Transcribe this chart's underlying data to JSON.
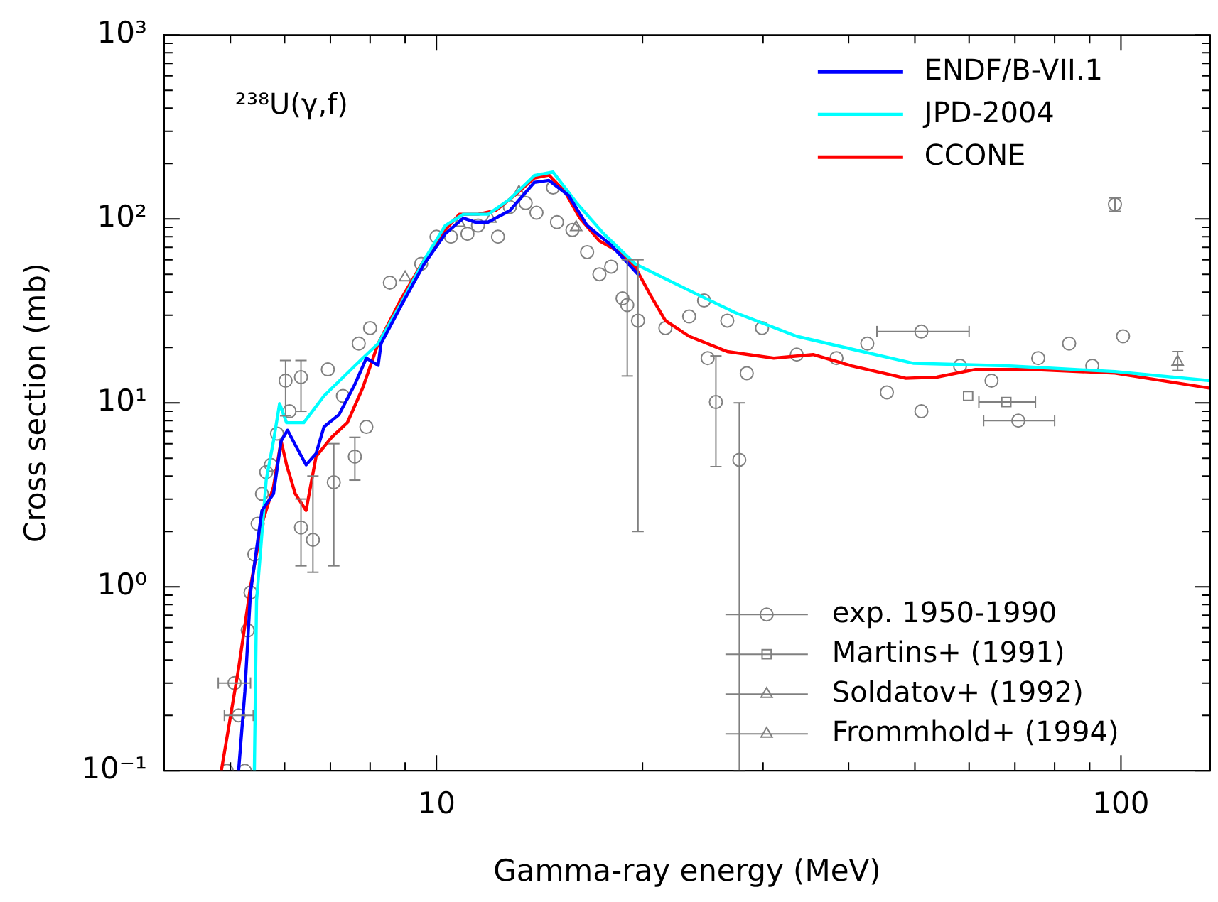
{
  "chart_data": {
    "type": "line",
    "xlabel": "Gamma-ray energy (MeV)",
    "ylabel": "Cross section (mb)",
    "log": "xy",
    "grid": false,
    "legend": "top right",
    "annotations": [
      "²³⁸U(γ,f)"
    ],
    "xlim": [
      4,
      135
    ],
    "ylim": [
      0.1,
      1000
    ],
    "xticks": [
      {
        "value": 4,
        "label": null
      },
      {
        "value": 5,
        "label": null
      },
      {
        "value": 6,
        "label": null
      },
      {
        "value": 7,
        "label": null
      },
      {
        "value": 8,
        "label": null
      },
      {
        "value": 9,
        "label": null
      },
      10,
      {
        "value": 20,
        "label": null
      },
      {
        "value": 30,
        "label": null
      },
      {
        "value": 40,
        "label": null
      },
      {
        "value": 50,
        "label": null
      },
      {
        "value": 60,
        "label": null
      },
      {
        "value": 70,
        "label": null
      },
      {
        "value": 80,
        "label": null
      },
      {
        "value": 90,
        "label": null
      },
      100
    ],
    "yticks": [
      {
        "value": 0.1,
        "label": "10⁻¹"
      },
      {
        "value": 0.2,
        "label": null
      },
      {
        "value": 0.3,
        "label": null
      },
      {
        "value": 0.4,
        "label": null
      },
      {
        "value": 0.5,
        "label": null
      },
      {
        "value": 0.6,
        "label": null
      },
      {
        "value": 0.7,
        "label": null
      },
      {
        "value": 0.8,
        "label": null
      },
      {
        "value": 0.9,
        "label": null
      },
      {
        "value": 1,
        "label": "10⁰"
      },
      {
        "value": 2,
        "label": null
      },
      {
        "value": 3,
        "label": null
      },
      {
        "value": 4,
        "label": null
      },
      {
        "value": 5,
        "label": null
      },
      {
        "value": 6,
        "label": null
      },
      {
        "value": 7,
        "label": null
      },
      {
        "value": 8,
        "label": null
      },
      {
        "value": 9,
        "label": null
      },
      {
        "value": 10,
        "label": "10¹"
      },
      {
        "value": 20,
        "label": null
      },
      {
        "value": 30,
        "label": null
      },
      {
        "value": 40,
        "label": null
      },
      {
        "value": 50,
        "label": null
      },
      {
        "value": 60,
        "label": null
      },
      {
        "value": 70,
        "label": null
      },
      {
        "value": 80,
        "label": null
      },
      {
        "value": 90,
        "label": null
      },
      {
        "value": 100,
        "label": "10²"
      },
      {
        "value": 200,
        "label": null
      },
      {
        "value": 300,
        "label": null
      },
      {
        "value": 400,
        "label": null
      },
      {
        "value": 500,
        "label": null
      },
      {
        "value": 600,
        "label": null
      },
      {
        "value": 700,
        "label": null
      },
      {
        "value": 800,
        "label": null
      },
      {
        "value": 900,
        "label": null
      },
      {
        "value": 1000,
        "label": "10³"
      }
    ],
    "series": [
      {
        "name": "exp. 1950-1990",
        "type": "scatter",
        "marker": "circle",
        "color": "#808080",
        "x": [
          4.94,
          5.07,
          5.14,
          5.25,
          5.3,
          5.35,
          5.42,
          5.48,
          5.56,
          5.64,
          5.73,
          5.85,
          6.02,
          6.1,
          6.34,
          6.34,
          6.6,
          6.94,
          7.08,
          7.3,
          7.6,
          7.7,
          7.9,
          8.0,
          8.55,
          9.5,
          10,
          10.5,
          11.1,
          11.5,
          12.3,
          12.8,
          13.5,
          14.0,
          14.8,
          15.0,
          15.8,
          16.6,
          17.3,
          18.0,
          18.7,
          19.0,
          19.7,
          21.6,
          23.4,
          24.6,
          24.9,
          25.6,
          27.7,
          26.6,
          28.4,
          29.9,
          33.6,
          38.4,
          42.6,
          45.5,
          51.1,
          51.1,
          58.2,
          64.7,
          70.8,
          75.7,
          84,
          90.8,
          100.7,
          98
        ],
        "values": [
          0.1,
          0.3,
          0.2,
          0.1,
          0.58,
          0.93,
          1.5,
          2.2,
          3.2,
          4.2,
          4.6,
          6.8,
          13.2,
          9.0,
          13.8,
          2.1,
          1.8,
          15.2,
          3.7,
          10.9,
          5.1,
          21,
          7.4,
          25.5,
          45,
          57,
          80,
          80,
          83,
          92,
          80,
          116,
          122,
          108,
          148,
          96,
          87,
          66,
          50,
          55,
          37,
          34,
          28,
          25.5,
          29.5,
          36,
          17.5,
          10.1,
          4.9,
          28,
          14.5,
          25.5,
          18.3,
          17.5,
          21,
          11.4,
          9.0,
          24.4,
          15.9,
          13.2,
          8.0,
          17.5,
          21,
          15.9,
          23,
          120
        ],
        "errors": [
          null,
          null,
          null,
          null,
          null,
          null,
          null,
          null,
          null,
          null,
          null,
          null,
          [
            8.5,
            17
          ],
          null,
          [
            9,
            17
          ],
          [
            1.3,
            3
          ],
          [
            1.2,
            4
          ],
          null,
          [
            1.3,
            6
          ],
          null,
          [
            3.8,
            6.5
          ],
          null,
          null,
          null,
          null,
          null,
          null,
          null,
          null,
          null,
          null,
          null,
          null,
          null,
          null,
          null,
          null,
          null,
          null,
          null,
          null,
          [
            14,
            60
          ],
          [
            2,
            60
          ],
          null,
          null,
          null,
          null,
          [
            4.5,
            18
          ],
          [
            0.1,
            10
          ],
          null,
          null,
          null,
          null,
          null,
          null,
          null,
          null,
          null,
          null,
          null,
          null,
          null,
          null,
          null,
          null,
          [
            110,
            130
          ]
        ],
        "xerrors": [
          null,
          [
            4.8,
            5.35
          ],
          [
            4.9,
            5.4
          ],
          null,
          null,
          null,
          null,
          null,
          null,
          null,
          null,
          null,
          null,
          null,
          null,
          null,
          null,
          null,
          null,
          null,
          null,
          null,
          null,
          null,
          null,
          null,
          null,
          null,
          null,
          null,
          null,
          null,
          null,
          null,
          null,
          null,
          null,
          null,
          null,
          null,
          null,
          null,
          null,
          null,
          null,
          null,
          null,
          null,
          null,
          null,
          null,
          null,
          null,
          null,
          null,
          null,
          null,
          [
            44,
            60
          ],
          null,
          null,
          [
            63,
            80
          ],
          null,
          null,
          null,
          null,
          null
        ]
      },
      {
        "name": "Martins+ (1991)",
        "type": "scatter",
        "marker": "square",
        "color": "#808080",
        "x": [
          59.8,
          68
        ],
        "values": [
          10.9,
          10.1
        ],
        "xerrors": [
          null,
          [
            62,
            75
          ]
        ]
      },
      {
        "name": "Soldatov+ (1992)",
        "type": "scatter",
        "marker": "triangle",
        "color": "#808080",
        "x": [
          9.0,
          10.8,
          12.0,
          13.2,
          16.0
        ],
        "values": [
          48,
          95,
          100,
          140,
          90
        ]
      },
      {
        "name": "Frommhold+ (1994)",
        "type": "scatter",
        "marker": "triangle",
        "color": "#808080",
        "x": [
          121
        ],
        "values": [
          16.7
        ],
        "errors": [
          [
            15,
            19
          ]
        ]
      },
      {
        "name": "ENDF/B-VII.1",
        "color": "#0000ff",
        "x": [
          5.14,
          5.25,
          5.35,
          5.56,
          5.78,
          5.93,
          6.06,
          6.22,
          6.45,
          6.67,
          6.85,
          7.2,
          7.6,
          7.9,
          8.22,
          8.3,
          8.89,
          9.6,
          10.3,
          10.95,
          11.4,
          11.9,
          12.8,
          13.9,
          14.6,
          15.6,
          16.6,
          18.0,
          19.7
        ],
        "values": [
          0.1,
          0.27,
          0.93,
          2.6,
          3.2,
          6.2,
          7.1,
          5.9,
          4.6,
          5.3,
          7.4,
          8.6,
          12.6,
          17.5,
          16,
          21,
          34,
          57,
          83,
          101,
          96,
          96,
          111,
          158,
          162,
          134,
          92,
          72,
          50
        ]
      },
      {
        "name": "JPD-2004",
        "color": "#00ffff",
        "x": [
          5.42,
          5.46,
          5.64,
          5.78,
          5.9,
          6.04,
          6.4,
          6.85,
          7.6,
          8.22,
          8.89,
          9.6,
          10.3,
          10.95,
          11.9,
          12.8,
          13.9,
          14.8,
          16.0,
          17.5,
          19.5,
          20.5,
          24.0,
          27.3,
          33.6,
          40.4,
          49.8,
          68,
          98,
          135
        ],
        "values": [
          0.1,
          0.84,
          3.8,
          6.2,
          9.9,
          7.8,
          7.8,
          10.9,
          15.9,
          21,
          35,
          60,
          92,
          106,
          106,
          128,
          172,
          180,
          123,
          84,
          57,
          52,
          39,
          31,
          23,
          19.6,
          16.4,
          15.9,
          14.8,
          13.2
        ]
      },
      {
        "name": "CCONE",
        "color": "#ff0000",
        "x": [
          4.85,
          5.14,
          5.35,
          5.56,
          5.78,
          5.93,
          6.04,
          6.22,
          6.45,
          6.67,
          7.03,
          7.41,
          7.8,
          8.22,
          8.89,
          9.6,
          10.3,
          10.8,
          11.5,
          12.2,
          13.0,
          13.9,
          14.6,
          15.4,
          16.2,
          17.3,
          18.5,
          19.5,
          20.5,
          21.6,
          23.4,
          26.6,
          31.1,
          35.5,
          40.4,
          48.5,
          53.8,
          61.3,
          73.6,
          98,
          135
        ],
        "values": [
          0.1,
          0.36,
          1.0,
          2.2,
          3.5,
          6.2,
          4.6,
          3.2,
          2.6,
          5.1,
          6.5,
          7.8,
          12,
          21,
          37,
          60,
          87,
          106,
          106,
          111,
          134,
          167,
          173,
          141,
          101,
          76,
          66,
          55,
          39,
          28,
          23,
          19,
          17.5,
          18.3,
          15.9,
          13.6,
          13.8,
          15.2,
          15.2,
          14.5,
          12
        ]
      }
    ]
  }
}
